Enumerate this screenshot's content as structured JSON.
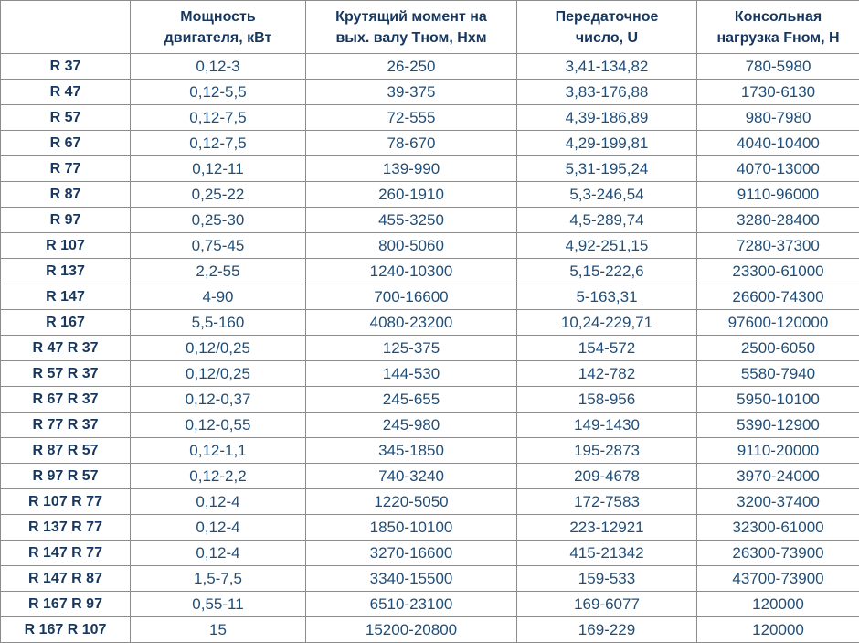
{
  "table": {
    "headers": [
      [
        "",
        ""
      ],
      [
        "Мощность",
        "двигателя, кВт"
      ],
      [
        "Крутящий момент на",
        "вых. валу Тном, Нхм"
      ],
      [
        "Передаточное",
        "число, U"
      ],
      [
        "Консольная",
        "нагрузка Fном, Н"
      ]
    ],
    "rows": [
      [
        "R 37",
        "0,12-3",
        "26-250",
        "3,41-134,82",
        "780-5980"
      ],
      [
        "R 47",
        "0,12-5,5",
        "39-375",
        "3,83-176,88",
        "1730-6130"
      ],
      [
        "R 57",
        "0,12-7,5",
        "72-555",
        "4,39-186,89",
        "980-7980"
      ],
      [
        "R 67",
        "0,12-7,5",
        "78-670",
        "4,29-199,81",
        "4040-10400"
      ],
      [
        "R 77",
        "0,12-11",
        "139-990",
        "5,31-195,24",
        "4070-13000"
      ],
      [
        "R 87",
        "0,25-22",
        "260-1910",
        "5,3-246,54",
        "9110-96000"
      ],
      [
        "R 97",
        "0,25-30",
        "455-3250",
        "4,5-289,74",
        "3280-28400"
      ],
      [
        "R 107",
        "0,75-45",
        "800-5060",
        "4,92-251,15",
        "7280-37300"
      ],
      [
        "R 137",
        "2,2-55",
        "1240-10300",
        "5,15-222,6",
        "23300-61000"
      ],
      [
        "R 147",
        "4-90",
        "700-16600",
        "5-163,31",
        "26600-74300"
      ],
      [
        "R 167",
        "5,5-160",
        "4080-23200",
        "10,24-229,71",
        "97600-120000"
      ],
      [
        "R 47 R 37",
        "0,12/0,25",
        "125-375",
        "154-572",
        "2500-6050"
      ],
      [
        "R 57 R 37",
        "0,12/0,25",
        "144-530",
        "142-782",
        "5580-7940"
      ],
      [
        "R 67 R 37",
        "0,12-0,37",
        "245-655",
        "158-956",
        "5950-10100"
      ],
      [
        "R 77 R 37",
        "0,12-0,55",
        "245-980",
        "149-1430",
        "5390-12900"
      ],
      [
        "R 87 R 57",
        "0,12-1,1",
        "345-1850",
        "195-2873",
        "9110-20000"
      ],
      [
        "R 97 R 57",
        "0,12-2,2",
        "740-3240",
        "209-4678",
        "3970-24000"
      ],
      [
        "R 107 R 77",
        "0,12-4",
        "1220-5050",
        "172-7583",
        "3200-37400"
      ],
      [
        "R 137 R 77",
        "0,12-4",
        "1850-10100",
        "223-12921",
        "32300-61000"
      ],
      [
        "R 147 R 77",
        "0,12-4",
        "3270-16600",
        "415-21342",
        "26300-73900"
      ],
      [
        "R 147 R 87",
        "1,5-7,5",
        "3340-15500",
        "159-533",
        "43700-73900"
      ],
      [
        "R 167 R 97",
        "0,55-11",
        "6510-23100",
        "169-6077",
        "120000"
      ],
      [
        "R 167 R 107",
        "15",
        "15200-20800",
        "169-229",
        "120000"
      ]
    ]
  }
}
